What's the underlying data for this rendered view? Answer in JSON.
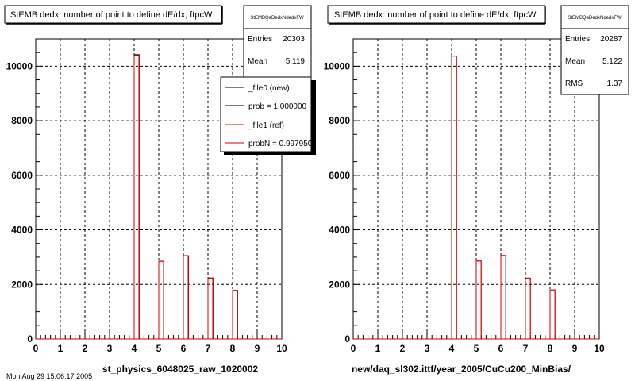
{
  "panels": [
    {
      "title": "StEMB dedx: number of point to define dE/dx, ftpcW",
      "stats": {
        "name": "StEMBQaDedxNdedxFW",
        "rows": [
          {
            "label": "Entries",
            "value": "20303"
          },
          {
            "label": "Mean",
            "value": "5.119"
          }
        ]
      },
      "legend": {
        "entries": [
          {
            "label": "_file0 (new)",
            "color": "#000000"
          },
          {
            "label": "prob = 1.000000",
            "color": "#000000"
          },
          {
            "label": "_file1 (ref)",
            "color": "#d00000"
          },
          {
            "label": "probN = 0.997950",
            "color": "#d00000"
          }
        ]
      },
      "xlabel": "st_physics_6048025_raw_1020002"
    },
    {
      "title": "StEMB dedx: number of point to define dE/dx, ftpcW",
      "stats": {
        "name": "StEMBQaDedxNdedxFW",
        "rows": [
          {
            "label": "Entries",
            "value": "20287"
          },
          {
            "label": "Mean",
            "value": "5.122"
          },
          {
            "label": "RMS",
            "value": "1.37"
          }
        ]
      },
      "legend": null,
      "xlabel": "new/daq_sl302.ittf/year_2005/CuCu200_MinBias/"
    }
  ],
  "footer": "Mon Aug 29 15:06:17 2005",
  "colors": {
    "new": "#000000",
    "ref": "#d00000"
  },
  "chart_data": [
    {
      "type": "bar",
      "title": "StEMB dedx: number of point to define dE/dx, ftpcW",
      "xlabel": "st_physics_6048025_raw_1020002",
      "ylabel": "",
      "xlim": [
        0,
        10
      ],
      "ylim": [
        0,
        11000
      ],
      "xticks": [
        0,
        1,
        2,
        3,
        4,
        5,
        6,
        7,
        8,
        9,
        10
      ],
      "yticks": [
        0,
        2000,
        4000,
        6000,
        8000,
        10000
      ],
      "grid": true,
      "bin_width": 0.2,
      "series": [
        {
          "name": "_file0 (new)",
          "bins": [
            {
              "x": 4,
              "y": 10420
            },
            {
              "x": 5,
              "y": 2850
            },
            {
              "x": 6,
              "y": 3050
            },
            {
              "x": 7,
              "y": 2230
            },
            {
              "x": 8,
              "y": 1780
            }
          ]
        },
        {
          "name": "_file1 (ref)",
          "bins": [
            {
              "x": 4,
              "y": 10380
            },
            {
              "x": 5,
              "y": 2850
            },
            {
              "x": 6,
              "y": 3050
            },
            {
              "x": 7,
              "y": 2230
            },
            {
              "x": 8,
              "y": 1780
            }
          ]
        }
      ]
    },
    {
      "type": "bar",
      "title": "StEMB dedx: number of point to define dE/dx, ftpcW",
      "xlabel": "new/daq_sl302.ittf/year_2005/CuCu200_MinBias/",
      "ylabel": "",
      "xlim": [
        0,
        10
      ],
      "ylim": [
        0,
        11000
      ],
      "xticks": [
        0,
        1,
        2,
        3,
        4,
        5,
        6,
        7,
        8,
        9,
        10
      ],
      "yticks": [
        0,
        2000,
        4000,
        6000,
        8000,
        10000
      ],
      "grid": true,
      "bin_width": 0.2,
      "series": [
        {
          "name": "",
          "bins": [
            {
              "x": 4,
              "y": 10370
            },
            {
              "x": 5,
              "y": 2860
            },
            {
              "x": 6,
              "y": 3060
            },
            {
              "x": 7,
              "y": 2230
            },
            {
              "x": 8,
              "y": 1800
            }
          ]
        }
      ]
    }
  ]
}
